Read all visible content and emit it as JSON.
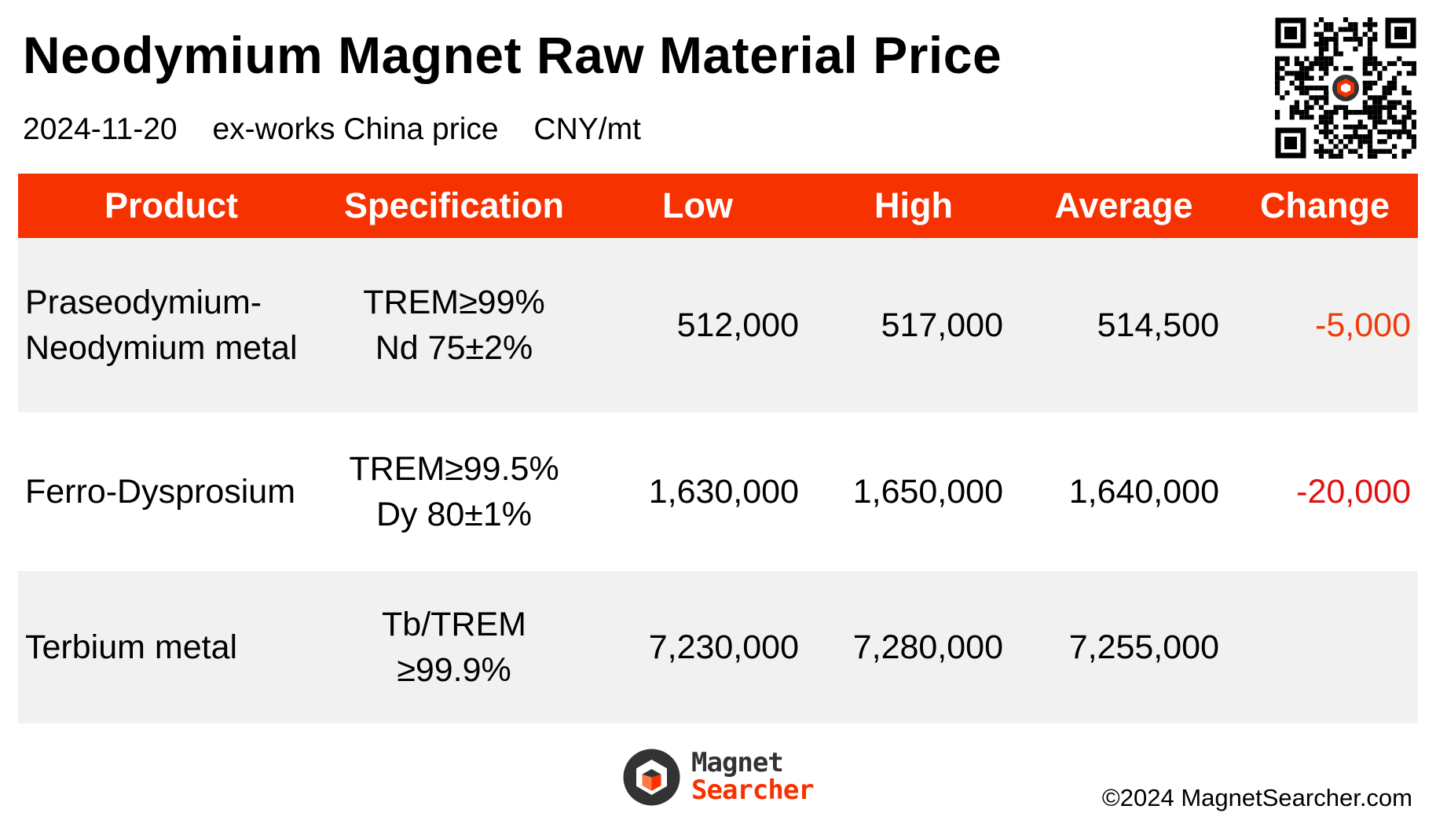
{
  "title": "Neodymium Magnet Raw Material Price",
  "subtitle": {
    "date": "2024-11-20",
    "basis": "ex-works China price",
    "unit": "CNY/mt"
  },
  "table": {
    "headers": [
      "Product",
      "Specification",
      "Low",
      "High",
      "Average",
      "Change"
    ],
    "rows": [
      {
        "product": [
          "Praseodymium-",
          "Neodymium metal"
        ],
        "spec": [
          "TREM≥99%",
          "Nd 75±2%"
        ],
        "low": "512,000",
        "high": "517,000",
        "average": "514,500",
        "change": "-5,000"
      },
      {
        "product": [
          "Ferro-Dysprosium"
        ],
        "spec": [
          "TREM≥99.5%",
          "Dy 80±1%"
        ],
        "low": "1,630,000",
        "high": "1,650,000",
        "average": "1,640,000",
        "change": "-20,000"
      },
      {
        "product": [
          "Terbium metal"
        ],
        "spec": [
          "Tb/TREM",
          "≥99.9%"
        ],
        "low": "7,230,000",
        "high": "7,280,000",
        "average": "7,255,000",
        "change": ""
      }
    ]
  },
  "logo": {
    "line1": "Magnet",
    "line2": "Searcher"
  },
  "copyright": "©2024 MagnetSearcher.com",
  "colors": {
    "header_bg": "#f63200",
    "change_row1": "#f03a0a",
    "change_row2": "#e01010",
    "row_shade": "#f1f1f1"
  },
  "icons": {
    "qr": "qr-code-icon",
    "logo": "magnet-searcher-logo-icon"
  }
}
